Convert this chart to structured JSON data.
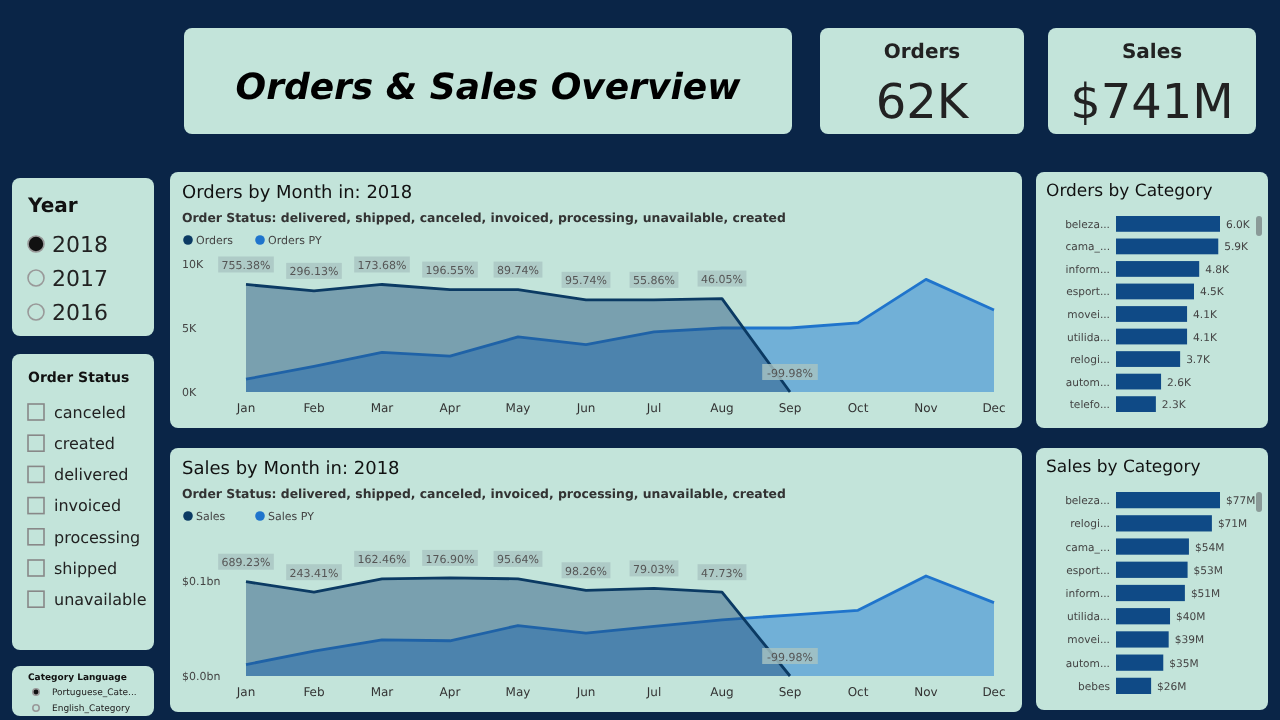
{
  "chart_data": [
    {
      "type": "other",
      "title": "Orders & Sales Overview"
    },
    {
      "type": "other",
      "title": "Orders",
      "annotations": [
        "62K"
      ]
    },
    {
      "type": "other",
      "title": "Sales",
      "annotations": [
        "$741M"
      ]
    },
    {
      "type": "other",
      "title": "Year",
      "annotations": [
        "2018",
        "2017",
        "2016"
      ]
    },
    {
      "type": "other",
      "title": "Order Status",
      "annotations": [
        "canceled",
        "created",
        "delivered",
        "invoiced",
        "processing",
        "shipped",
        "unavailable"
      ]
    },
    {
      "type": "other",
      "title": "Category Language",
      "annotations": [
        "Portuguese_Cate...",
        "English_Category"
      ]
    },
    {
      "type": "area",
      "title": "Orders by Month in: 2018",
      "subtitle": "Order Status: delivered, shipped, canceled, invoiced, processing, unavailable, created",
      "categories": [
        "Jan",
        "Feb",
        "Mar",
        "Apr",
        "May",
        "Jun",
        "Jul",
        "Aug",
        "Sep",
        "Oct",
        "Nov",
        "Dec"
      ],
      "ylim": [
        0,
        10000
      ],
      "yticks": [
        {
          "value": 0,
          "label": "0K"
        },
        {
          "value": 5000,
          "label": "5K"
        },
        {
          "value": 10000,
          "label": "10K"
        }
      ],
      "legend": "top left",
      "series": [
        {
          "name": "Orders",
          "color": "#0b3a63",
          "values": [
            8400,
            7900,
            8400,
            8000,
            8000,
            7200,
            7200,
            7300,
            0,
            null,
            null,
            null
          ]
        },
        {
          "name": "Orders PY",
          "color": "#1f74cc",
          "values": [
            1000,
            2000,
            3100,
            2800,
            4300,
            3700,
            4700,
            5000,
            5000,
            5400,
            8800,
            6400
          ]
        }
      ],
      "annotations": [
        {
          "text": "755.38%",
          "x": "Jan",
          "y": 8400
        },
        {
          "text": "296.13%",
          "x": "Feb",
          "y": 7900
        },
        {
          "text": "173.68%",
          "x": "Mar",
          "y": 8400
        },
        {
          "text": "196.55%",
          "x": "Apr",
          "y": 8000
        },
        {
          "text": "89.74%",
          "x": "May",
          "y": 8000
        },
        {
          "text": "95.74%",
          "x": "Jun",
          "y": 7200
        },
        {
          "text": "55.86%",
          "x": "Jul",
          "y": 7200
        },
        {
          "text": "46.05%",
          "x": "Aug",
          "y": 7300
        },
        {
          "text": "-99.98%",
          "x": "Sep",
          "y": 0
        }
      ]
    },
    {
      "type": "bar",
      "orientation": "horizontal",
      "title": "Orders by Category",
      "categories": [
        "beleza...",
        "cama_...",
        "inform...",
        "esport...",
        "movei...",
        "utilida...",
        "relogi...",
        "autom...",
        "telefo..."
      ],
      "values": [
        6.0,
        5.9,
        4.8,
        4.5,
        4.1,
        4.1,
        3.7,
        2.6,
        2.3
      ],
      "value_labels": [
        "6.0K",
        "5.9K",
        "4.8K",
        "4.5K",
        "4.1K",
        "4.1K",
        "3.7K",
        "2.6K",
        "2.3K"
      ],
      "color": "#0f4a86"
    },
    {
      "type": "area",
      "title": "Sales by Month in: 2018",
      "subtitle": "Order Status: delivered, shipped, canceled, invoiced, processing, unavailable, created",
      "categories": [
        "Jan",
        "Feb",
        "Mar",
        "Apr",
        "May",
        "Jun",
        "Jul",
        "Aug",
        "Sep",
        "Oct",
        "Nov",
        "Dec"
      ],
      "ylim": [
        0,
        0.105
      ],
      "yticks": [
        {
          "value": 0,
          "label": "$0.0bn"
        },
        {
          "value": 0.1,
          "label": "$0.1bn"
        }
      ],
      "legend": "top left",
      "series": [
        {
          "name": "Sales",
          "color": "#0b3a63",
          "values": [
            0.099,
            0.088,
            0.102,
            0.103,
            0.102,
            0.09,
            0.092,
            0.088,
            0,
            null,
            null,
            null
          ]
        },
        {
          "name": "Sales PY",
          "color": "#1f74cc",
          "values": [
            0.012,
            0.026,
            0.038,
            0.037,
            0.053,
            0.045,
            0.052,
            0.059,
            0.064,
            0.069,
            0.105,
            0.077
          ]
        }
      ],
      "annotations": [
        {
          "text": "689.23%",
          "x": "Jan",
          "y": 0.099
        },
        {
          "text": "243.41%",
          "x": "Feb",
          "y": 0.088
        },
        {
          "text": "162.46%",
          "x": "Mar",
          "y": 0.102
        },
        {
          "text": "176.90%",
          "x": "Apr",
          "y": 0.103
        },
        {
          "text": "95.64%",
          "x": "May",
          "y": 0.102
        },
        {
          "text": "98.26%",
          "x": "Jun",
          "y": 0.09
        },
        {
          "text": "79.03%",
          "x": "Jul",
          "y": 0.092
        },
        {
          "text": "47.73%",
          "x": "Aug",
          "y": 0.088
        },
        {
          "text": "-99.98%",
          "x": "Sep",
          "y": 0
        }
      ]
    },
    {
      "type": "bar",
      "orientation": "horizontal",
      "title": "Sales by Category",
      "categories": [
        "beleza...",
        "relogi...",
        "cama_...",
        "esport...",
        "inform...",
        "utilida...",
        "movei...",
        "autom...",
        "bebes"
      ],
      "values": [
        77,
        71,
        54,
        53,
        51,
        40,
        39,
        35,
        26
      ],
      "value_labels": [
        "$77M",
        "$71M",
        "$54M",
        "$53M",
        "$51M",
        "$40M",
        "$39M",
        "$35M",
        "$26M"
      ],
      "color": "#0f4a86"
    }
  ]
}
